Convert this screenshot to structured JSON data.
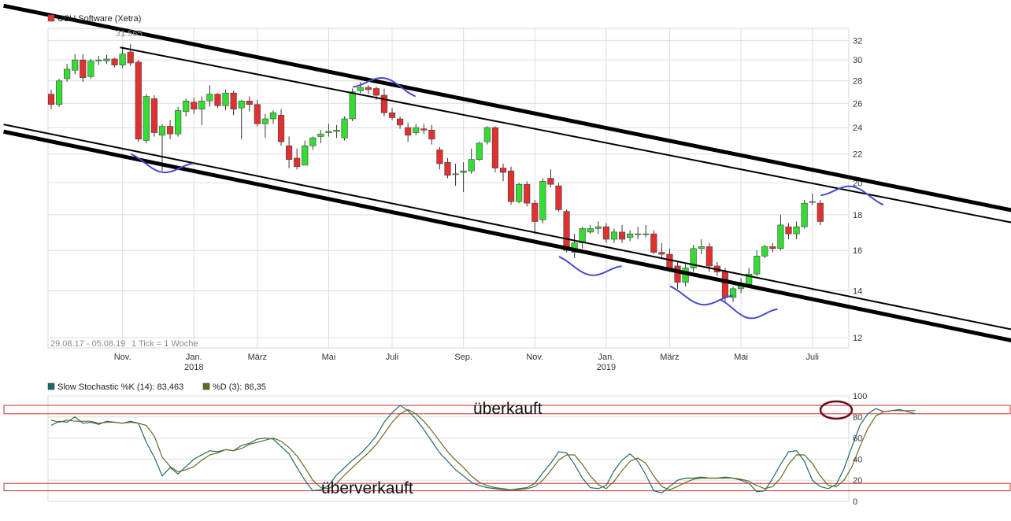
{
  "chart_data": [
    {
      "type": "candlestick",
      "legend": {
        "label": "USU Software (Xetra)",
        "color": "#e03030"
      },
      "price_high_label": "31.565",
      "range_caption": "29.08.17 - 05.08.19",
      "tick_caption": "1 Tick = 1 Woche",
      "y_scale": "log",
      "ylim": [
        11.6,
        33.3
      ],
      "y_ticks": [
        12,
        14,
        16,
        18,
        20,
        22,
        24,
        26,
        28,
        30,
        32
      ],
      "x_ticks": [
        {
          "label": "Nov.",
          "sublabel": "",
          "week": 9
        },
        {
          "label": "Jan.",
          "sublabel": "2018",
          "week": 18
        },
        {
          "label": "März",
          "sublabel": "",
          "week": 26
        },
        {
          "label": "Mai",
          "sublabel": "",
          "week": 35
        },
        {
          "label": "Juli",
          "sublabel": "",
          "week": 43
        },
        {
          "label": "Sep.",
          "sublabel": "",
          "week": 52
        },
        {
          "label": "Nov.",
          "sublabel": "",
          "week": 61
        },
        {
          "label": "Jan.",
          "sublabel": "2019",
          "week": 70
        },
        {
          "label": "März",
          "sublabel": "",
          "week": 78
        },
        {
          "label": "Mai",
          "sublabel": "",
          "week": 87
        },
        {
          "label": "Juli",
          "sublabel": "",
          "week": 96
        }
      ],
      "candles": [
        [
          26.8,
          25.9,
          27.2,
          25.5
        ],
        [
          25.9,
          28.0,
          28.2,
          25.7
        ],
        [
          28.2,
          29.1,
          29.6,
          27.9
        ],
        [
          29.0,
          30.0,
          30.6,
          28.6
        ],
        [
          30.0,
          28.3,
          30.6,
          27.9
        ],
        [
          28.4,
          29.9,
          30.1,
          28.2
        ],
        [
          29.9,
          30.0,
          30.4,
          29.5
        ],
        [
          29.9,
          30.1,
          30.5,
          29.6
        ],
        [
          30.1,
          29.5,
          30.2,
          29.3
        ],
        [
          29.5,
          30.6,
          31.3,
          29.2
        ],
        [
          30.8,
          29.7,
          31.6,
          29.4
        ],
        [
          29.8,
          23.1,
          30.0,
          22.9
        ],
        [
          23.0,
          26.6,
          26.8,
          22.8
        ],
        [
          26.4,
          23.6,
          26.7,
          23.3
        ],
        [
          23.4,
          24.1,
          24.3,
          20.8
        ],
        [
          24.1,
          23.5,
          24.6,
          23.1
        ],
        [
          23.5,
          25.4,
          25.7,
          23.3
        ],
        [
          25.3,
          26.2,
          26.4,
          24.9
        ],
        [
          26.1,
          25.5,
          26.5,
          25.1
        ],
        [
          25.5,
          26.2,
          26.6,
          24.2
        ],
        [
          26.2,
          26.8,
          27.6,
          25.7
        ],
        [
          26.8,
          25.8,
          26.9,
          25.6
        ],
        [
          25.8,
          26.9,
          27.2,
          25.4
        ],
        [
          26.9,
          25.5,
          27.1,
          25.0
        ],
        [
          25.6,
          26.2,
          26.3,
          23.1
        ],
        [
          26.2,
          25.9,
          26.6,
          25.3
        ],
        [
          25.9,
          24.3,
          26.3,
          24.1
        ],
        [
          24.3,
          24.7,
          25.1,
          23.2
        ],
        [
          24.7,
          25.2,
          25.4,
          24.3
        ],
        [
          25.0,
          22.9,
          25.5,
          22.6
        ],
        [
          22.6,
          21.6,
          23.3,
          21.0
        ],
        [
          21.7,
          21.1,
          22.4,
          20.9
        ],
        [
          21.2,
          22.6,
          23.0,
          21.2
        ],
        [
          22.6,
          23.2,
          23.3,
          22.3
        ],
        [
          23.3,
          23.5,
          23.8,
          22.8
        ],
        [
          23.6,
          23.7,
          24.3,
          23.3
        ],
        [
          23.7,
          23.8,
          24.2,
          23.2
        ],
        [
          23.2,
          24.7,
          24.9,
          23.0
        ],
        [
          24.7,
          27.0,
          27.3,
          24.5
        ],
        [
          27.1,
          27.4,
          27.9,
          26.9
        ],
        [
          27.4,
          27.2,
          27.6,
          26.8
        ],
        [
          27.3,
          26.7,
          27.5,
          26.3
        ],
        [
          26.7,
          25.2,
          27.3,
          24.9
        ],
        [
          25.2,
          24.8,
          25.6,
          24.6
        ],
        [
          24.7,
          24.2,
          24.9,
          23.9
        ],
        [
          24.0,
          23.4,
          24.4,
          22.9
        ],
        [
          23.6,
          24.0,
          24.3,
          23.4
        ],
        [
          23.9,
          23.8,
          24.3,
          23.5
        ],
        [
          23.8,
          23.1,
          24.2,
          22.7
        ],
        [
          22.3,
          21.3,
          22.5,
          20.9
        ],
        [
          21.4,
          20.5,
          21.7,
          20.3
        ],
        [
          20.6,
          20.6,
          21.3,
          19.8
        ],
        [
          20.7,
          20.8,
          21.4,
          19.4
        ],
        [
          20.8,
          21.6,
          22.4,
          20.6
        ],
        [
          21.6,
          22.8,
          22.9,
          21.5
        ],
        [
          22.9,
          24.0,
          24.1,
          22.7
        ],
        [
          24.0,
          21.0,
          24.1,
          20.7
        ],
        [
          21.0,
          20.7,
          21.3,
          20.1
        ],
        [
          20.8,
          18.8,
          21.1,
          18.6
        ],
        [
          18.8,
          19.9,
          20.0,
          18.7
        ],
        [
          19.9,
          18.7,
          20.1,
          18.5
        ],
        [
          18.7,
          17.6,
          18.9,
          16.9
        ],
        [
          17.7,
          20.1,
          20.3,
          17.5
        ],
        [
          20.3,
          19.9,
          20.9,
          19.7
        ],
        [
          19.8,
          18.3,
          20.0,
          18.2
        ],
        [
          18.2,
          16.0,
          18.3,
          15.9
        ],
        [
          15.9,
          16.4,
          16.9,
          15.6
        ],
        [
          16.4,
          17.2,
          17.3,
          16.1
        ],
        [
          17.0,
          17.2,
          17.4,
          16.9
        ],
        [
          17.2,
          17.3,
          17.6,
          16.9
        ],
        [
          17.3,
          16.6,
          17.5,
          16.4
        ],
        [
          16.6,
          17.0,
          17.2,
          16.4
        ],
        [
          17.0,
          16.6,
          17.4,
          16.4
        ],
        [
          16.7,
          16.9,
          17.1,
          16.5
        ],
        [
          16.9,
          16.9,
          17.3,
          16.6
        ],
        [
          16.9,
          16.9,
          17.4,
          16.7
        ],
        [
          16.9,
          15.9,
          17.1,
          15.8
        ],
        [
          15.9,
          15.8,
          16.4,
          15.6
        ],
        [
          15.8,
          15.1,
          16.1,
          14.9
        ],
        [
          15.2,
          14.4,
          15.4,
          14.1
        ],
        [
          14.4,
          15.1,
          15.3,
          14.2
        ],
        [
          15.1,
          16.1,
          16.3,
          14.9
        ],
        [
          16.1,
          16.2,
          16.6,
          15.8
        ],
        [
          16.2,
          15.2,
          16.4,
          14.9
        ],
        [
          15.2,
          14.9,
          15.4,
          14.7
        ],
        [
          14.9,
          13.7,
          15.1,
          13.5
        ],
        [
          13.7,
          14.1,
          14.2,
          13.5
        ],
        [
          14.1,
          14.3,
          14.6,
          13.9
        ],
        [
          14.3,
          14.8,
          15.1,
          14.2
        ],
        [
          14.8,
          15.7,
          16.0,
          14.7
        ],
        [
          15.7,
          16.2,
          16.3,
          15.6
        ],
        [
          16.2,
          16.1,
          16.4,
          15.9
        ],
        [
          16.1,
          17.4,
          18.0,
          16.0
        ],
        [
          17.3,
          16.9,
          17.5,
          16.6
        ],
        [
          16.9,
          17.3,
          17.6,
          16.6
        ],
        [
          17.3,
          18.7,
          18.9,
          17.2
        ],
        [
          18.8,
          18.8,
          19.3,
          18.6
        ],
        [
          18.7,
          17.6,
          18.9,
          17.4
        ]
      ],
      "trend_channel": {
        "upper_outer": [
          [
            -6,
            35.88
          ],
          [
            128.5,
            17.57
          ]
        ],
        "upper_inner": [
          [
            8.7,
            31.27
          ],
          [
            128.3,
            16.91
          ]
        ],
        "lower_outer": [
          [
            -6,
            23.68
          ],
          [
            128.5,
            11.42
          ]
        ],
        "lower_inner": [
          [
            -6,
            24.25
          ],
          [
            128.4,
            11.86
          ]
        ]
      },
      "highlight_arcs": [
        {
          "center_week": 14,
          "price": 21.2,
          "half_width_weeks": 3.3,
          "direction": "down"
        },
        {
          "center_week": 42,
          "price": 27.6,
          "half_width_weeks": 3.3,
          "direction": "up"
        },
        {
          "center_week": 68,
          "price": 15.1,
          "half_width_weeks": 3.3,
          "direction": "down"
        },
        {
          "center_week": 82,
          "price": 13.7,
          "half_width_weeks": 3.3,
          "direction": "down"
        },
        {
          "center_week": 88,
          "price": 13.1,
          "half_width_weeks": 3.0,
          "direction": "down"
        },
        {
          "center_week": 101,
          "price": 19.3,
          "half_width_weeks": 3.3,
          "direction": "up"
        }
      ],
      "colors": {
        "up": "#33dd33",
        "down": "#e03030",
        "wick": "#333333",
        "channel": "#000000",
        "arc": "#4a4ad0",
        "grid": "#dddddd"
      }
    },
    {
      "type": "line",
      "title_k": "Slow Stochastic %K (14): 83,463",
      "title_d": "%D (3): 86,35",
      "ylim": [
        0,
        100
      ],
      "y_ticks": [
        0,
        20,
        40,
        60,
        80,
        100
      ],
      "series": [
        {
          "name": "Slow Stochastic %K (14): 83,463",
          "color": "#1e6a6a",
          "values": [
            72,
            76,
            75,
            80,
            74,
            75,
            73,
            76,
            75,
            74,
            76,
            74,
            56,
            42,
            24,
            32,
            26,
            33,
            40,
            44,
            48,
            47,
            49,
            48,
            53,
            55,
            59,
            60,
            59,
            52,
            45,
            32,
            20,
            10,
            11,
            15,
            25,
            32,
            39,
            45,
            53,
            62,
            75,
            84,
            91,
            86,
            78,
            68,
            57,
            46,
            38,
            30,
            24,
            18,
            15,
            13,
            12,
            11,
            11,
            12,
            13,
            17,
            27,
            36,
            47,
            46,
            35,
            22,
            13,
            12,
            15,
            29,
            39,
            45,
            38,
            25,
            10,
            8,
            14,
            20,
            22,
            22,
            23,
            22,
            22,
            23,
            22,
            20,
            17,
            9,
            10,
            22,
            35,
            47,
            48,
            38,
            20,
            14,
            12,
            16,
            31,
            52,
            72,
            83,
            88,
            85,
            86,
            87,
            85,
            83
          ]
        },
        {
          "name": "%D (3): 86,35",
          "color": "#6a6a1e",
          "values": [
            77,
            75,
            77,
            76,
            76,
            76,
            74,
            75,
            75,
            74,
            75,
            74,
            72,
            62,
            42,
            33,
            28,
            30,
            33,
            39,
            44,
            46,
            49,
            48,
            50,
            54,
            56,
            58,
            60,
            57,
            51,
            43,
            32,
            20,
            13,
            12,
            17,
            25,
            32,
            39,
            46,
            54,
            64,
            75,
            83,
            87,
            83,
            76,
            67,
            57,
            47,
            39,
            32,
            24,
            18,
            15,
            13,
            12,
            11,
            11,
            12,
            14,
            20,
            29,
            39,
            44,
            44,
            35,
            24,
            16,
            12,
            19,
            29,
            38,
            41,
            36,
            24,
            14,
            11,
            14,
            18,
            21,
            22,
            22,
            22,
            22,
            22,
            21,
            19,
            15,
            12,
            14,
            22,
            35,
            44,
            44,
            36,
            24,
            15,
            14,
            20,
            33,
            52,
            69,
            81,
            85,
            86,
            86,
            86,
            86
          ]
        }
      ],
      "zones": [
        {
          "label": "überkauft",
          "ymin": 83,
          "ymax": 91
        },
        {
          "label": "überverkauft",
          "ymin": 10,
          "ymax": 17
        }
      ],
      "marker": {
        "week": 100.5,
        "value": 88,
        "color": "#6e0c1c"
      }
    }
  ]
}
